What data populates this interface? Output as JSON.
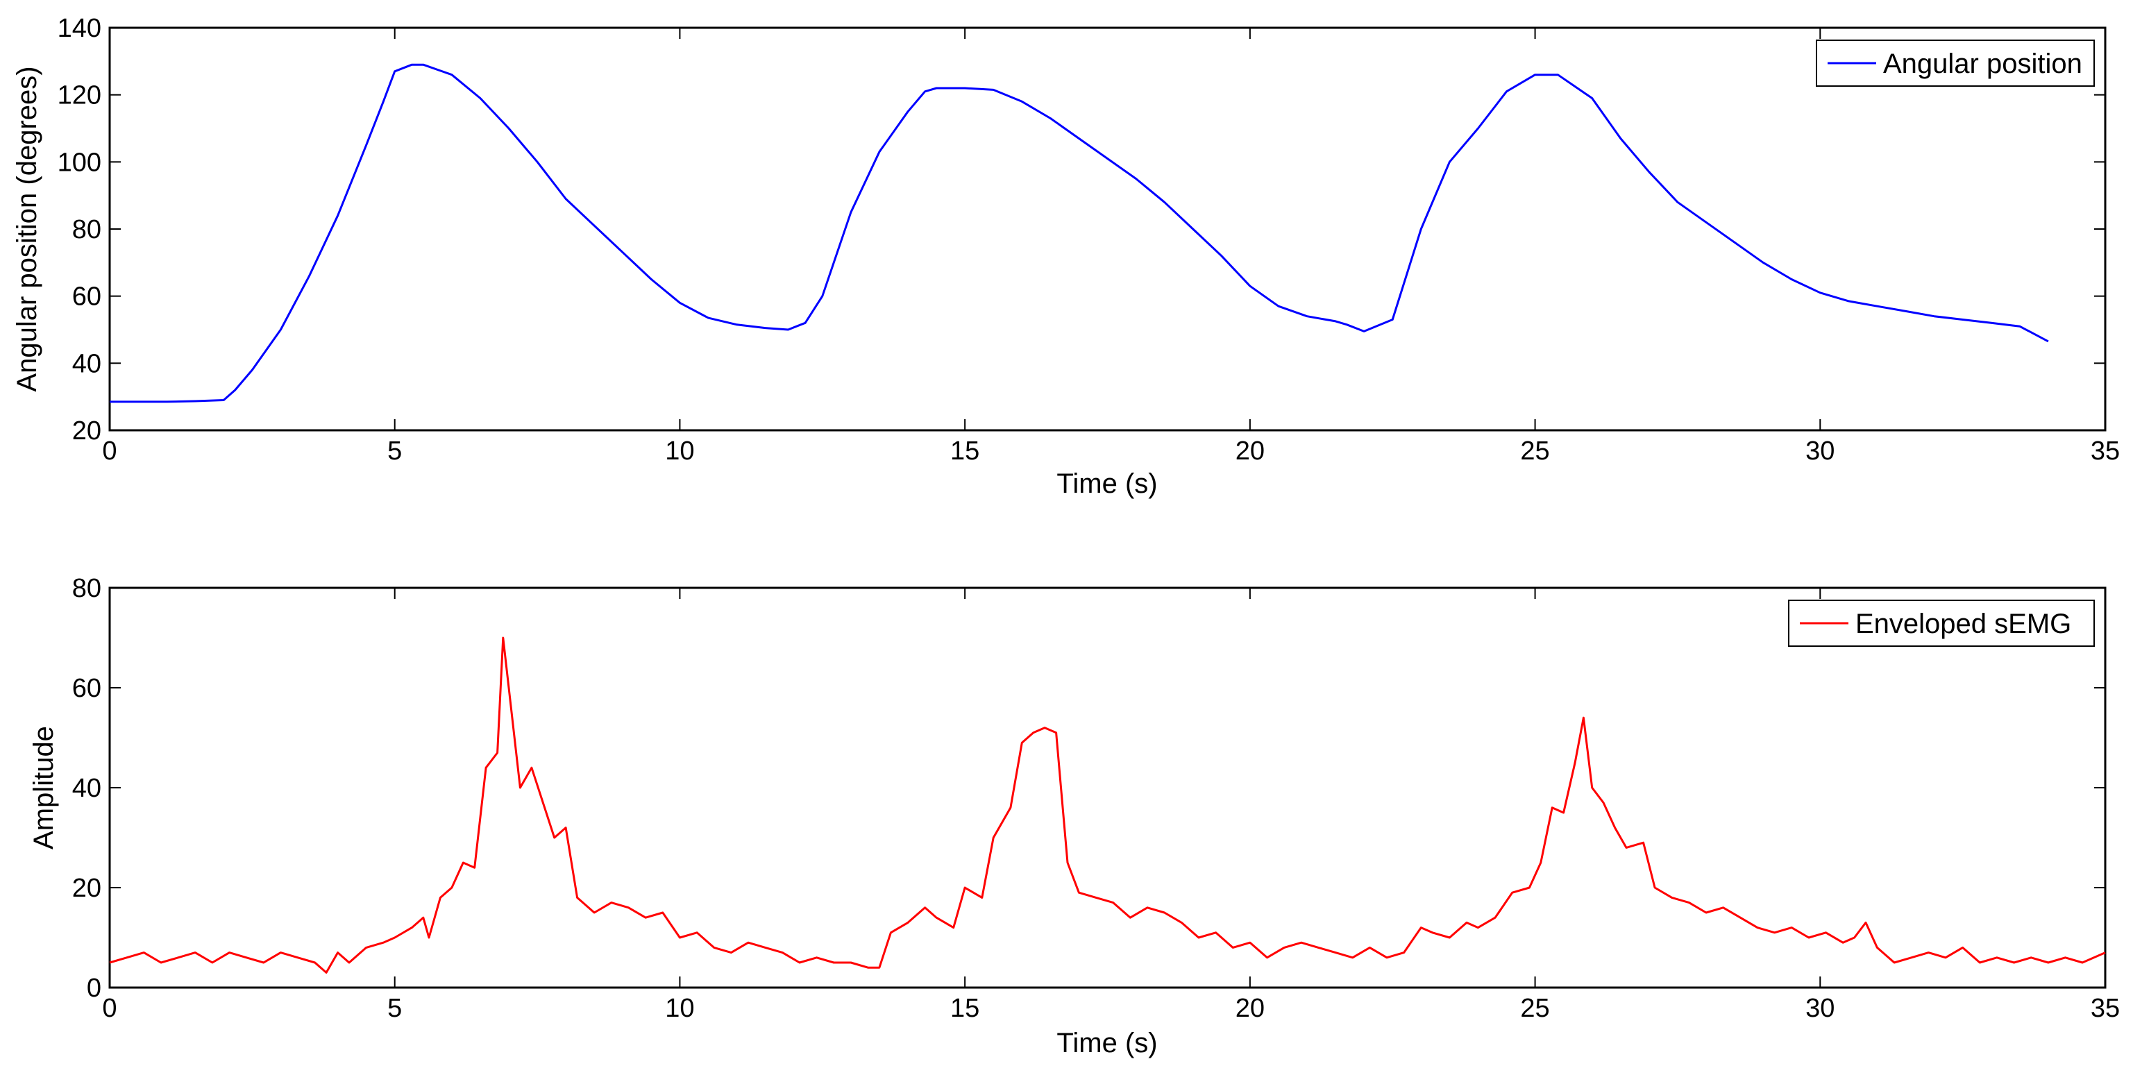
{
  "chart_data": [
    {
      "type": "line",
      "xlabel": "Time (s)",
      "ylabel": "Angular position (degrees)",
      "xlim": [
        0,
        35
      ],
      "ylim": [
        20,
        140
      ],
      "xticks": [
        0,
        5,
        10,
        15,
        20,
        25,
        30,
        35
      ],
      "yticks": [
        20,
        40,
        60,
        80,
        100,
        120,
        140
      ],
      "grid": false,
      "legend_position": "top-right",
      "series": [
        {
          "name": "Angular position",
          "color": "#0000ff",
          "x": [
            0,
            0.5,
            1.0,
            1.5,
            2.0,
            2.2,
            2.5,
            3.0,
            3.5,
            4.0,
            4.5,
            4.8,
            5.0,
            5.3,
            5.5,
            6.0,
            6.5,
            7.0,
            7.5,
            8.0,
            8.5,
            9.0,
            9.5,
            10.0,
            10.5,
            11.0,
            11.5,
            11.9,
            12.2,
            12.5,
            13.0,
            13.5,
            14.0,
            14.3,
            14.5,
            15.0,
            15.5,
            16.0,
            16.5,
            17.0,
            17.5,
            18.0,
            18.5,
            19.0,
            19.5,
            20.0,
            20.5,
            21.0,
            21.5,
            21.7,
            22.0,
            22.5,
            23.0,
            23.5,
            24.0,
            24.5,
            25.0,
            25.4,
            26.0,
            26.5,
            27.0,
            27.5,
            28.0,
            28.5,
            29.0,
            29.5,
            30.0,
            30.5,
            31.0,
            31.5,
            32.0,
            32.5,
            33.0,
            33.5,
            34.0
          ],
          "y": [
            28.5,
            28.5,
            28.5,
            28.7,
            29,
            32,
            38,
            50,
            66,
            84,
            105,
            118,
            127,
            129,
            129,
            126,
            119,
            110,
            100,
            89,
            81,
            73,
            65,
            58,
            53.5,
            51.5,
            50.5,
            50,
            52,
            60,
            85,
            103,
            115,
            121,
            122,
            122,
            121.5,
            118,
            113,
            107,
            101,
            95,
            88,
            80,
            72,
            63,
            57,
            54,
            52.5,
            51.5,
            49.5,
            53,
            80,
            100,
            110,
            121,
            126,
            126,
            119,
            107,
            97,
            88,
            82,
            76,
            70,
            65,
            61,
            58.5,
            57,
            55.5,
            54,
            53,
            52,
            51,
            46.5
          ]
        }
      ]
    },
    {
      "type": "line",
      "xlabel": "Time (s)",
      "ylabel": "Amplitude",
      "xlim": [
        0,
        35
      ],
      "ylim": [
        0,
        80
      ],
      "xticks": [
        0,
        5,
        10,
        15,
        20,
        25,
        30,
        35
      ],
      "yticks": [
        0,
        20,
        40,
        60,
        80
      ],
      "grid": false,
      "legend_position": "top-right",
      "series": [
        {
          "name": "Enveloped sEMG",
          "color": "#ff0000",
          "x": [
            0,
            0.3,
            0.6,
            0.9,
            1.2,
            1.5,
            1.8,
            2.1,
            2.4,
            2.7,
            3.0,
            3.3,
            3.6,
            3.8,
            4.0,
            4.2,
            4.5,
            4.8,
            5.0,
            5.3,
            5.5,
            5.6,
            5.8,
            6.0,
            6.2,
            6.4,
            6.6,
            6.8,
            6.9,
            7.0,
            7.2,
            7.4,
            7.6,
            7.8,
            8.0,
            8.2,
            8.5,
            8.8,
            9.1,
            9.4,
            9.7,
            10.0,
            10.3,
            10.6,
            10.9,
            11.2,
            11.5,
            11.8,
            12.1,
            12.4,
            12.7,
            13.0,
            13.3,
            13.5,
            13.7,
            14.0,
            14.3,
            14.5,
            14.8,
            15.0,
            15.3,
            15.5,
            15.8,
            16.0,
            16.2,
            16.4,
            16.6,
            16.8,
            17.0,
            17.3,
            17.6,
            17.9,
            18.2,
            18.5,
            18.8,
            19.1,
            19.4,
            19.7,
            20.0,
            20.3,
            20.6,
            20.9,
            21.2,
            21.5,
            21.8,
            22.1,
            22.4,
            22.7,
            23.0,
            23.2,
            23.5,
            23.8,
            24.0,
            24.3,
            24.6,
            24.9,
            25.1,
            25.3,
            25.5,
            25.7,
            25.85,
            26.0,
            26.2,
            26.4,
            26.6,
            26.9,
            27.1,
            27.4,
            27.7,
            28.0,
            28.3,
            28.6,
            28.9,
            29.2,
            29.5,
            29.8,
            30.1,
            30.4,
            30.6,
            30.8,
            31.0,
            31.3,
            31.6,
            31.9,
            32.2,
            32.5,
            32.8,
            33.1,
            33.4,
            33.7,
            34.0,
            34.3,
            34.6,
            35.0
          ],
          "y": [
            5,
            6,
            7,
            5,
            6,
            7,
            5,
            7,
            6,
            5,
            7,
            6,
            5,
            3,
            7,
            5,
            8,
            9,
            10,
            12,
            14,
            10,
            18,
            20,
            25,
            24,
            44,
            47,
            70,
            60,
            40,
            44,
            37,
            30,
            32,
            18,
            15,
            17,
            16,
            14,
            15,
            10,
            11,
            8,
            7,
            9,
            8,
            7,
            5,
            6,
            5,
            5,
            4,
            4,
            11,
            13,
            16,
            14,
            12,
            20,
            18,
            30,
            36,
            49,
            51,
            52,
            51,
            25,
            19,
            18,
            17,
            14,
            16,
            15,
            13,
            10,
            11,
            8,
            9,
            6,
            8,
            9,
            8,
            7,
            6,
            8,
            6,
            7,
            12,
            11,
            10,
            13,
            12,
            14,
            19,
            20,
            25,
            36,
            35,
            45,
            54,
            40,
            37,
            32,
            28,
            29,
            20,
            18,
            17,
            15,
            16,
            14,
            12,
            11,
            12,
            10,
            11,
            9,
            10,
            13,
            8,
            5,
            6,
            7,
            6,
            8,
            5,
            6,
            5,
            6,
            5,
            6,
            5,
            7
          ]
        }
      ]
    }
  ]
}
